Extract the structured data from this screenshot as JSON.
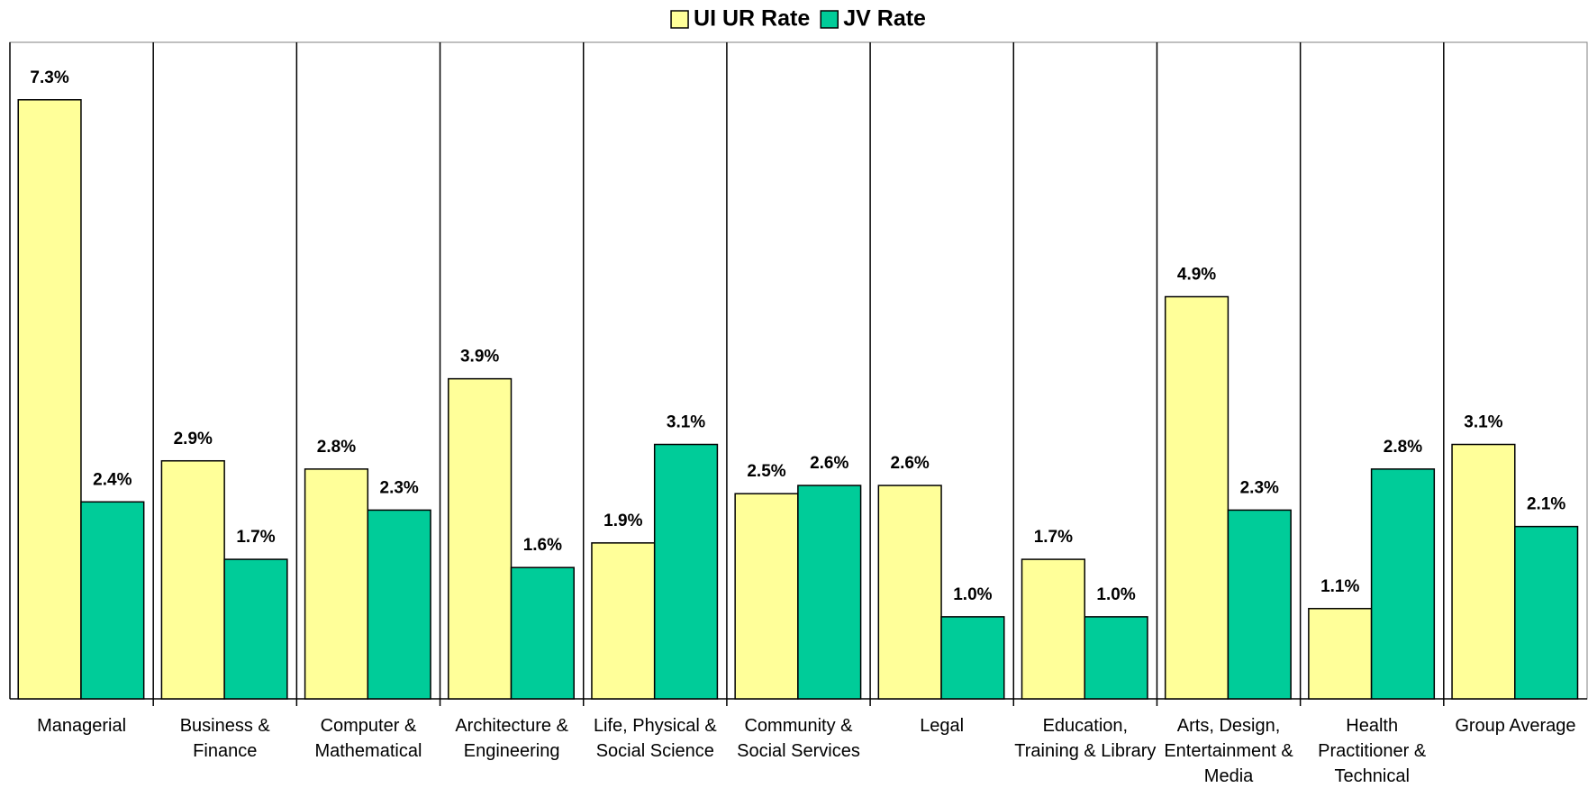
{
  "chart_data": {
    "type": "bar",
    "categories": [
      "Managerial",
      "Business & Finance",
      "Computer & Mathematical",
      "Architecture & Engineering",
      "Life, Physical & Social Science",
      "Community & Social Services",
      "Legal",
      "Education, Training & Library",
      "Arts, Design, Entertainment & Media",
      "Health Practitioner & Technical",
      "Group Average"
    ],
    "series": [
      {
        "name": "UI UR Rate",
        "color": "#ffff99",
        "values": [
          7.3,
          2.9,
          2.8,
          3.9,
          1.9,
          2.5,
          2.6,
          1.7,
          4.9,
          1.1,
          3.1
        ],
        "value_labels": [
          "7.3%",
          "2.9%",
          "2.8%",
          "3.9%",
          "1.9%",
          "2.5%",
          "2.6%",
          "1.7%",
          "4.9%",
          "1.1%",
          "3.1%"
        ]
      },
      {
        "name": "JV Rate",
        "color": "#00cc99",
        "values": [
          2.4,
          1.7,
          2.3,
          1.6,
          3.1,
          2.6,
          1.0,
          1.0,
          2.3,
          2.8,
          2.1
        ],
        "value_labels": [
          "2.4%",
          "1.7%",
          "2.3%",
          "1.6%",
          "3.1%",
          "2.6%",
          "1.0%",
          "1.0%",
          "2.3%",
          "2.8%",
          "2.1%"
        ]
      }
    ],
    "ylim": [
      0,
      8
    ],
    "legend": "top"
  }
}
